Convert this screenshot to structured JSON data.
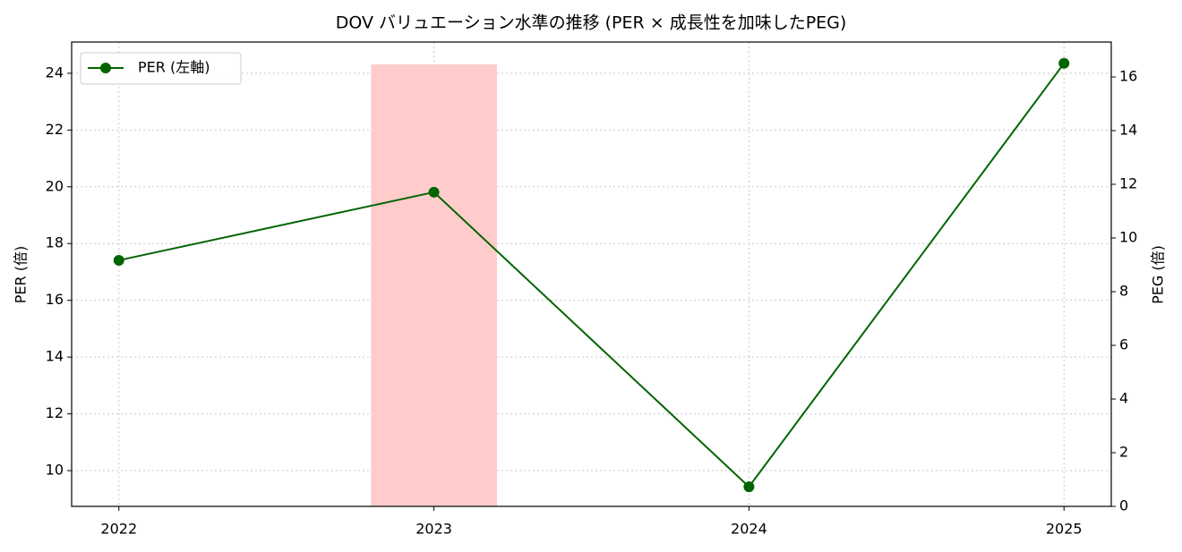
{
  "chart_data": {
    "type": "line",
    "title": "DOV バリュエーション水準の推移 (PER × 成長性を加味したPEG)",
    "x": [
      2022,
      2023,
      2024,
      2025
    ],
    "xlim": [
      2021.85,
      2025.15
    ],
    "xticks": [
      2022,
      2023,
      2024,
      2025
    ],
    "y_label": "PER (倍)",
    "y2_label": "PEG (倍)",
    "ylim": [
      8.74,
      25.1
    ],
    "yticks": [
      10,
      12,
      14,
      16,
      18,
      20,
      22,
      24
    ],
    "y2lim": [
      0,
      17.3
    ],
    "y2ticks": [
      0,
      2,
      4,
      6,
      8,
      10,
      12,
      14,
      16
    ],
    "grid": true,
    "legend": "upper left",
    "series": [
      {
        "name": "PER (左軸)",
        "type": "line",
        "color": "#006400",
        "values": [
          17.41,
          19.81,
          9.43,
          24.35
        ]
      },
      {
        "type": "bar",
        "axis": "y2",
        "color": "#ffcccc",
        "values": [
          null,
          16.47,
          null,
          null
        ]
      }
    ]
  }
}
